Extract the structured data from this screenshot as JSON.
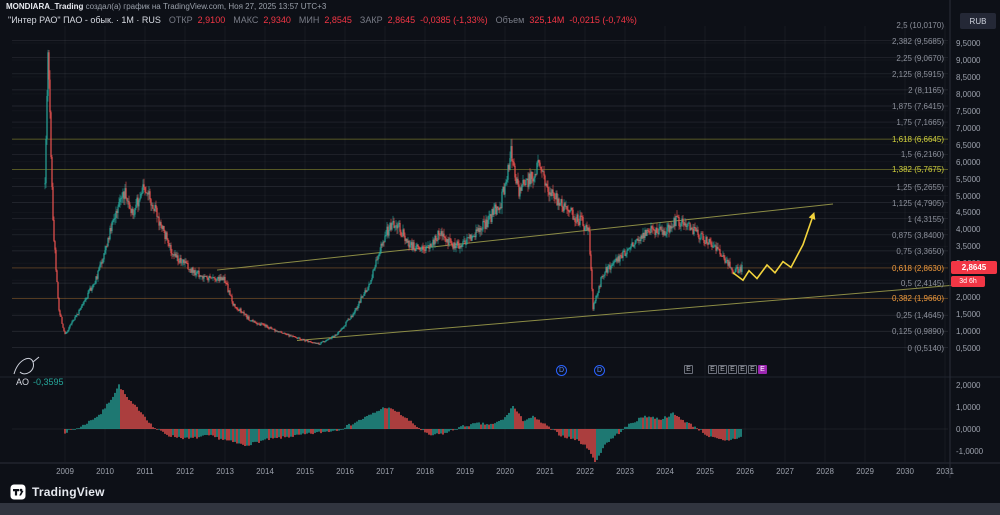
{
  "attribution": {
    "user": "MONDIARA_Trading",
    "rest": " создал(а) график на TradingView.com, Ноя 27, 2025 13:57 UTC+3"
  },
  "header": {
    "symbol": "\"Интер РАО\" ПАО - обык. · 1М · RUS",
    "fields": [
      {
        "label": "ОТКР",
        "value": "2,9100"
      },
      {
        "label": "МАКС",
        "value": "2,9340"
      },
      {
        "label": "МИН",
        "value": "2,8545"
      },
      {
        "label": "ЗАКР",
        "value": "2,8645"
      }
    ],
    "change": "-0,0385 (-1,33%)",
    "volume_label": "Объем",
    "volume_value": "325,14М",
    "volume_change": "-0,0215 (-0,74%)"
  },
  "currency_button": "RUB",
  "price_axis": {
    "ticks": [
      "9,5000",
      "9,0000",
      "8,5000",
      "8,0000",
      "7,5000",
      "7,0000",
      "6,5000",
      "6,0000",
      "5,5000",
      "5,0000",
      "4,5000",
      "4,0000",
      "3,5000",
      "3,0000",
      "2,0000",
      "1,5000",
      "1,0000",
      "0,5000"
    ],
    "last_price": "2,8645",
    "countdown": "3d 6h"
  },
  "ao_pane": {
    "label": "AO",
    "value": "-0,3595",
    "ticks": [
      "2,0000",
      "1,0000",
      "0,0000",
      "-1,0000"
    ]
  },
  "time_axis": [
    "2009",
    "2010",
    "2011",
    "2012",
    "2013",
    "2014",
    "2015",
    "2016",
    "2017",
    "2018",
    "2019",
    "2020",
    "2021",
    "2022",
    "2023",
    "2024",
    "2025",
    "2026",
    "2027",
    "2028",
    "2029",
    "2030",
    "2031"
  ],
  "footer": {
    "brand": "TradingView"
  },
  "colors": {
    "up": "#26a69a",
    "down": "#ef5350",
    "accent_red": "#f23645",
    "fib_gray": "#8d919c",
    "fib_yellow": "#cfcf3d",
    "fib_orange": "#ef9a3d",
    "trend": "#9a9a4a",
    "projection": "#f2d33c",
    "dividend_blue": "#2962ff",
    "earnings_purple": "#9c27b0"
  },
  "chart_data": {
    "type": "candlestick",
    "symbol": "Интер РАО",
    "timeframe": "1М",
    "currency": "RUB",
    "price_axis_range": [
      0.5,
      9.5
    ],
    "time_range": [
      2008.5,
      2031
    ],
    "last_price": 2.8645,
    "ao_last": -0.3595,
    "fib_retracement": {
      "levels": [
        {
          "level": "2,5",
          "price": 10.017,
          "text": "2,5 (10,0170)",
          "color": "gray"
        },
        {
          "level": "2,382",
          "price": 9.5685,
          "text": "2,382 (9,5685)",
          "color": "gray"
        },
        {
          "level": "2,25",
          "price": 9.067,
          "text": "2,25 (9,0670)",
          "color": "gray"
        },
        {
          "level": "2,125",
          "price": 8.5915,
          "text": "2,125 (8,5915)",
          "color": "gray"
        },
        {
          "level": "2",
          "price": 8.1165,
          "text": "2 (8,1165)",
          "color": "gray"
        },
        {
          "level": "1,875",
          "price": 7.6415,
          "text": "1,875 (7,6415)",
          "color": "gray"
        },
        {
          "level": "1,75",
          "price": 7.1665,
          "text": "1,75 (7,1665)",
          "color": "gray"
        },
        {
          "level": "1,618",
          "price": 6.6645,
          "text": "1,618 (6,6645)",
          "color": "yellow"
        },
        {
          "level": "1,5",
          "price": 6.216,
          "text": "1,5 (6,2160)",
          "color": "gray"
        },
        {
          "level": "1,382",
          "price": 5.7675,
          "text": "1,382 (5,7675)",
          "color": "yellow"
        },
        {
          "level": "1,25",
          "price": 5.2655,
          "text": "1,25 (5,2655)",
          "color": "gray"
        },
        {
          "level": "1,125",
          "price": 4.7905,
          "text": "1,125 (4,7905)",
          "color": "gray"
        },
        {
          "level": "1",
          "price": 4.3155,
          "text": "1 (4,3155)",
          "color": "gray"
        },
        {
          "level": "0,875",
          "price": 3.84,
          "text": "0,875 (3,8400)",
          "color": "gray"
        },
        {
          "level": "0,75",
          "price": 3.365,
          "text": "0,75 (3,3650)",
          "color": "gray"
        },
        {
          "level": "0,618",
          "price": 2.863,
          "text": "0,618 (2,8630)",
          "color": "orange"
        },
        {
          "level": "0,5",
          "price": 2.4145,
          "text": "0,5 (2,4145)",
          "color": "gray"
        },
        {
          "level": "0,382",
          "price": 1.966,
          "text": "0,382 (1,9660)",
          "color": "orange"
        },
        {
          "level": "0,25",
          "price": 1.4645,
          "text": "0,25 (1,4645)",
          "color": "gray"
        },
        {
          "level": "0,125",
          "price": 0.989,
          "text": "0,125 (0,9890)",
          "color": "gray"
        },
        {
          "level": "0",
          "price": 0.514,
          "text": "0 (0,5140)",
          "color": "gray"
        }
      ]
    },
    "price_keypoints": [
      [
        2008.5,
        5.5
      ],
      [
        2008.58,
        9.35
      ],
      [
        2008.7,
        4.2
      ],
      [
        2008.85,
        1.6
      ],
      [
        2009.0,
        0.9
      ],
      [
        2009.4,
        1.7
      ],
      [
        2009.8,
        2.6
      ],
      [
        2010.2,
        4.2
      ],
      [
        2010.45,
        5.15
      ],
      [
        2010.7,
        4.5
      ],
      [
        2011.0,
        5.25
      ],
      [
        2011.3,
        4.4
      ],
      [
        2011.7,
        3.3
      ],
      [
        2012.0,
        2.95
      ],
      [
        2012.5,
        2.55
      ],
      [
        2013.0,
        2.5
      ],
      [
        2013.2,
        1.8
      ],
      [
        2013.6,
        1.35
      ],
      [
        2014.0,
        1.15
      ],
      [
        2014.5,
        0.9
      ],
      [
        2015.0,
        0.72
      ],
      [
        2015.35,
        0.62
      ],
      [
        2015.8,
        0.9
      ],
      [
        2016.2,
        1.5
      ],
      [
        2016.6,
        2.4
      ],
      [
        2017.0,
        3.85
      ],
      [
        2017.25,
        4.25
      ],
      [
        2017.6,
        3.55
      ],
      [
        2018.0,
        3.35
      ],
      [
        2018.35,
        3.85
      ],
      [
        2018.7,
        3.5
      ],
      [
        2019.0,
        3.65
      ],
      [
        2019.5,
        4.15
      ],
      [
        2019.9,
        4.8
      ],
      [
        2020.15,
        6.25
      ],
      [
        2020.35,
        5.1
      ],
      [
        2020.6,
        5.5
      ],
      [
        2020.85,
        5.85
      ],
      [
        2021.1,
        5.2
      ],
      [
        2021.5,
        4.6
      ],
      [
        2021.9,
        4.25
      ],
      [
        2022.1,
        3.9
      ],
      [
        2022.2,
        1.65
      ],
      [
        2022.45,
        2.7
      ],
      [
        2022.8,
        3.1
      ],
      [
        2023.2,
        3.55
      ],
      [
        2023.6,
        4.0
      ],
      [
        2024.0,
        3.95
      ],
      [
        2024.3,
        4.3
      ],
      [
        2024.6,
        4.05
      ],
      [
        2024.9,
        3.8
      ],
      [
        2025.2,
        3.55
      ],
      [
        2025.5,
        3.1
      ],
      [
        2025.75,
        2.75
      ],
      [
        2025.92,
        2.8645
      ]
    ],
    "ao_keypoints": [
      [
        2009,
        -0.15
      ],
      [
        2009.4,
        0.1
      ],
      [
        2009.9,
        0.7
      ],
      [
        2010.2,
        1.5
      ],
      [
        2010.35,
        2.0
      ],
      [
        2010.6,
        1.3
      ],
      [
        2010.9,
        0.8
      ],
      [
        2011.2,
        0.1
      ],
      [
        2011.6,
        -0.3
      ],
      [
        2012.1,
        -0.45
      ],
      [
        2012.6,
        -0.3
      ],
      [
        2013.1,
        -0.55
      ],
      [
        2013.5,
        -0.75
      ],
      [
        2014.0,
        -0.5
      ],
      [
        2014.6,
        -0.35
      ],
      [
        2015.2,
        -0.2
      ],
      [
        2015.8,
        -0.05
      ],
      [
        2016.2,
        0.25
      ],
      [
        2016.7,
        0.7
      ],
      [
        2017.0,
        1.0
      ],
      [
        2017.3,
        0.8
      ],
      [
        2017.7,
        0.25
      ],
      [
        2018.1,
        -0.3
      ],
      [
        2018.5,
        -0.2
      ],
      [
        2018.9,
        0.1
      ],
      [
        2019.3,
        0.25
      ],
      [
        2019.7,
        0.2
      ],
      [
        2020.0,
        0.5
      ],
      [
        2020.2,
        1.05
      ],
      [
        2020.45,
        0.4
      ],
      [
        2020.7,
        0.55
      ],
      [
        2021.0,
        0.2
      ],
      [
        2021.4,
        -0.3
      ],
      [
        2021.8,
        -0.5
      ],
      [
        2022.1,
        -0.9
      ],
      [
        2022.25,
        -1.55
      ],
      [
        2022.5,
        -0.7
      ],
      [
        2022.8,
        -0.25
      ],
      [
        2023.1,
        0.2
      ],
      [
        2023.5,
        0.6
      ],
      [
        2023.9,
        0.45
      ],
      [
        2024.2,
        0.7
      ],
      [
        2024.5,
        0.35
      ],
      [
        2024.8,
        0.05
      ],
      [
        2025.1,
        -0.35
      ],
      [
        2025.5,
        -0.55
      ],
      [
        2025.92,
        -0.36
      ]
    ],
    "trendlines": [
      {
        "t1": 2012.8,
        "p1": 2.8,
        "t2": 2028.2,
        "p2": 4.75
      },
      {
        "t1": 2014.8,
        "p1": 0.72,
        "t2": 2031.2,
        "p2": 2.35
      }
    ],
    "projection_zigzag": [
      [
        2025.7,
        2.72
      ],
      [
        2025.95,
        2.5
      ],
      [
        2026.1,
        2.78
      ],
      [
        2026.3,
        2.55
      ],
      [
        2026.55,
        2.95
      ],
      [
        2026.75,
        2.72
      ],
      [
        2026.95,
        3.05
      ],
      [
        2027.15,
        2.88
      ],
      [
        2027.45,
        3.55
      ],
      [
        2027.7,
        4.4
      ]
    ],
    "markers": [
      {
        "type": "dividend",
        "t": 2021.4
      },
      {
        "type": "dividend",
        "t": 2022.35
      },
      {
        "type": "earnings",
        "t": 2024.6
      },
      {
        "type": "earnings",
        "t": 2025.2
      },
      {
        "type": "earnings",
        "t": 2025.45
      },
      {
        "type": "earnings",
        "t": 2025.7
      },
      {
        "type": "earnings",
        "t": 2025.95
      },
      {
        "type": "earnings",
        "t": 2026.2
      },
      {
        "type": "earnings-projected",
        "t": 2026.45
      }
    ]
  }
}
